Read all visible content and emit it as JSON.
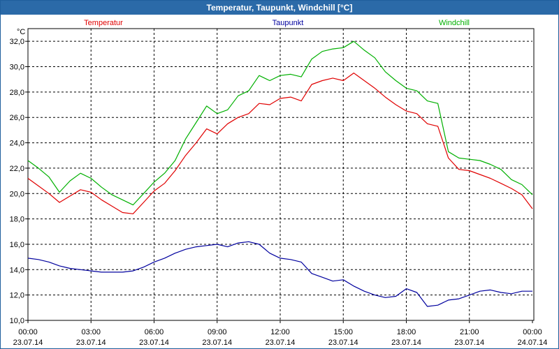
{
  "window": {
    "title": "Temperatur, Taupunkt, Windchill [°C]"
  },
  "chart_data": {
    "type": "line",
    "title": "Temperatur, Taupunkt, Windchill [°C]",
    "ylabel": "°C",
    "xlabel": "",
    "ylim": [
      10.0,
      33.0
    ],
    "xlim_hours": [
      0,
      24
    ],
    "grid": true,
    "y_ticks": [
      "10,0",
      "12,0",
      "14,0",
      "16,0",
      "18,0",
      "20,0",
      "22,0",
      "24,0",
      "26,0",
      "28,0",
      "30,0",
      "32,0"
    ],
    "x_ticks": [
      {
        "time": "00:00",
        "date": "23.07.14"
      },
      {
        "time": "03:00",
        "date": "23.07.14"
      },
      {
        "time": "06:00",
        "date": "23.07.14"
      },
      {
        "time": "09:00",
        "date": "23.07.14"
      },
      {
        "time": "12:00",
        "date": "23.07.14"
      },
      {
        "time": "15:00",
        "date": "23.07.14"
      },
      {
        "time": "18:00",
        "date": "23.07.14"
      },
      {
        "time": "21:00",
        "date": "23.07.14"
      },
      {
        "time": "00:00",
        "date": "24.07.14"
      }
    ],
    "x_hours": [
      0,
      0.5,
      1,
      1.5,
      2,
      2.5,
      3,
      3.5,
      4,
      4.5,
      5,
      5.5,
      6,
      6.5,
      7,
      7.5,
      8,
      8.5,
      9,
      9.5,
      10,
      10.5,
      11,
      11.5,
      12,
      12.5,
      13,
      13.5,
      14,
      14.5,
      15,
      15.5,
      16,
      16.5,
      17,
      17.5,
      18,
      18.5,
      19,
      19.5,
      20,
      20.5,
      21,
      21.5,
      22,
      22.5,
      23,
      23.5,
      24
    ],
    "series": [
      {
        "name": "Temperatur",
        "color": "#e00000",
        "values": [
          21.2,
          20.6,
          20.0,
          19.3,
          19.8,
          20.3,
          20.1,
          19.5,
          19.0,
          18.5,
          18.4,
          19.3,
          20.2,
          20.8,
          21.8,
          23.0,
          24.0,
          25.1,
          24.7,
          25.5,
          26.0,
          26.3,
          27.1,
          27.0,
          27.5,
          27.6,
          27.3,
          28.6,
          28.9,
          29.1,
          28.9,
          29.5,
          28.9,
          28.3,
          27.6,
          27.0,
          26.5,
          26.3,
          25.5,
          25.3,
          22.8,
          21.9,
          21.8,
          21.5,
          21.2,
          20.8,
          20.4,
          19.9,
          18.8
        ]
      },
      {
        "name": "Taupunkt",
        "color": "#00009e",
        "values": [
          14.9,
          14.8,
          14.6,
          14.3,
          14.1,
          14.0,
          13.9,
          13.8,
          13.8,
          13.8,
          13.9,
          14.2,
          14.6,
          14.9,
          15.3,
          15.6,
          15.8,
          15.9,
          16.0,
          15.8,
          16.1,
          16.2,
          16.0,
          15.3,
          14.9,
          14.8,
          14.6,
          13.7,
          13.4,
          13.1,
          13.2,
          12.7,
          12.3,
          12.0,
          11.8,
          11.9,
          12.5,
          12.2,
          11.1,
          11.2,
          11.6,
          11.7,
          12.0,
          12.3,
          12.4,
          12.2,
          12.1,
          12.3,
          12.3
        ]
      },
      {
        "name": "Windchill",
        "color": "#00b000",
        "values": [
          22.6,
          22.0,
          21.3,
          20.1,
          21.0,
          21.6,
          21.2,
          20.5,
          19.9,
          19.5,
          19.1,
          20.0,
          20.9,
          21.6,
          22.6,
          24.3,
          25.6,
          26.9,
          26.3,
          26.6,
          27.7,
          28.1,
          29.3,
          28.9,
          29.3,
          29.4,
          29.2,
          30.6,
          31.2,
          31.4,
          31.5,
          32.0,
          31.3,
          30.7,
          29.6,
          28.9,
          28.3,
          28.1,
          27.3,
          27.1,
          23.3,
          22.8,
          22.7,
          22.6,
          22.3,
          21.9,
          21.1,
          20.7,
          19.9
        ]
      }
    ]
  }
}
